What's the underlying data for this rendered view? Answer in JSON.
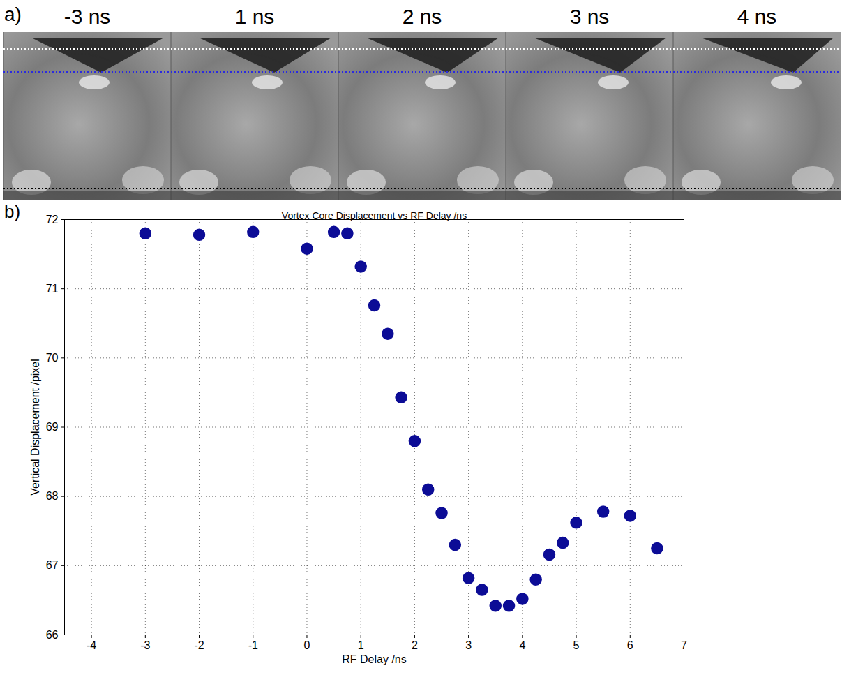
{
  "image_panel": {
    "panel_label": "a)",
    "frame_labels": [
      "-3 ns",
      "1 ns",
      "2 ns",
      "3 ns",
      "4 ns"
    ]
  },
  "chart_data": {
    "type": "scatter",
    "panel_label": "b)",
    "title": "Vortex Core Displacement vs RF Delay /ns",
    "x_label": "RF Delay /ns",
    "y_label": "Vertical Displacement /pixel",
    "x": [
      -3,
      -2,
      -1,
      0,
      0.5,
      0.75,
      1,
      1.25,
      1.5,
      1.75,
      2,
      2.25,
      2.5,
      2.75,
      3,
      3.25,
      3.5,
      3.75,
      4,
      4.25,
      4.5,
      4.75,
      5,
      5.5,
      6,
      6.5
    ],
    "values": [
      71.8,
      71.78,
      71.82,
      71.58,
      71.82,
      71.8,
      71.32,
      70.76,
      70.35,
      69.43,
      68.8,
      68.1,
      67.76,
      67.3,
      66.82,
      66.65,
      66.42,
      66.42,
      66.52,
      66.8,
      67.16,
      67.33,
      67.62,
      67.78,
      67.72,
      67.25
    ],
    "color": "#0c0c96",
    "marker": "circle",
    "xlim": [
      -4.5,
      7
    ],
    "xticks": [
      -4,
      -3,
      -2,
      -1,
      0,
      1,
      2,
      3,
      4,
      5,
      6,
      7
    ],
    "ylim": [
      66,
      72
    ],
    "yticks": [
      66,
      67,
      68,
      69,
      70,
      71,
      72
    ],
    "grid": true
  }
}
